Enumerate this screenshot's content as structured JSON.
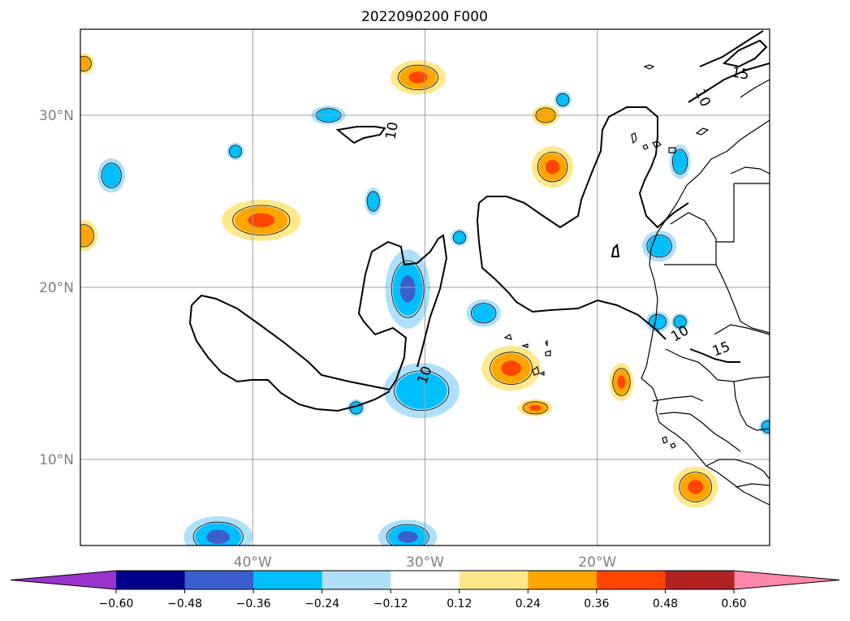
{
  "title": "2022090200 F000",
  "map": {
    "projection": "PlateCarree",
    "lon_range": [
      -50,
      -10
    ],
    "lat_range": [
      5,
      35
    ],
    "grid": true,
    "lat_ticks": [
      {
        "value": 30,
        "label": "30°N"
      },
      {
        "value": 20,
        "label": "20°N"
      },
      {
        "value": 10,
        "label": "10°N"
      }
    ],
    "lon_ticks": [
      {
        "value": -40,
        "label": "40°W"
      },
      {
        "value": -30,
        "label": "30°W"
      },
      {
        "value": -20,
        "label": "20°W"
      }
    ],
    "contour_labels": [
      {
        "text": "15",
        "lon": -11.7,
        "lat": 32.4,
        "rot": 10
      },
      {
        "text": "10",
        "lon": -13.9,
        "lat": 31.0,
        "rot": 65
      },
      {
        "text": "10",
        "lon": -31.9,
        "lat": 29.1,
        "rot": -80
      },
      {
        "text": "10",
        "lon": -30.0,
        "lat": 14.9,
        "rot": -70
      },
      {
        "text": "10",
        "lon": -15.2,
        "lat": 17.3,
        "rot": -30
      },
      {
        "text": "15",
        "lon": -12.8,
        "lat": 16.4,
        "rot": -20
      }
    ]
  },
  "colorbar": {
    "levels": [
      -0.6,
      -0.48,
      -0.36,
      -0.24,
      -0.12,
      0.12,
      0.24,
      0.36,
      0.48,
      0.6
    ],
    "tick_labels": [
      "−0.60",
      "−0.48",
      "−0.36",
      "−0.24",
      "−0.12",
      "0.12",
      "0.24",
      "0.36",
      "0.48",
      "0.60"
    ],
    "extend": "both",
    "under_color": "#9933cc",
    "over_color": "#ff88aa",
    "colors": [
      "#00008b",
      "#3a5fcd",
      "#00bfff",
      "#aee0fa",
      "#ffffff",
      "#ffe88c",
      "#ffa500",
      "#ff4500",
      "#b22222"
    ]
  },
  "chart_data": {
    "type": "heatmap",
    "title": "2022090200 F000",
    "x_range": [
      -50,
      -10
    ],
    "y_range": [
      5,
      35
    ],
    "blobs": [
      {
        "lon": -49.8,
        "lat": 33.0,
        "rx": 0.6,
        "ry": 0.6,
        "levels": [
          "#ffe88c",
          "#ffa500"
        ]
      },
      {
        "lon": -49.8,
        "lat": 23.0,
        "rx": 0.8,
        "ry": 0.9,
        "levels": [
          "#ffe88c",
          "#ffa500"
        ]
      },
      {
        "lon": -30.4,
        "lat": 32.2,
        "rx": 1.6,
        "ry": 1.0,
        "levels": [
          "#ffe88c",
          "#ffa500",
          "#ff4500"
        ]
      },
      {
        "lon": -23.0,
        "lat": 30.0,
        "rx": 0.8,
        "ry": 0.6,
        "levels": [
          "#ffe88c",
          "#ffa500"
        ]
      },
      {
        "lon": -22.6,
        "lat": 27.0,
        "rx": 1.2,
        "ry": 1.2,
        "levels": [
          "#ffe88c",
          "#ffa500",
          "#ff4500"
        ]
      },
      {
        "lon": -39.5,
        "lat": 23.9,
        "rx": 2.3,
        "ry": 1.2,
        "levels": [
          "#ffe88c",
          "#ffa500",
          "#ff4500"
        ]
      },
      {
        "lon": -25.0,
        "lat": 15.3,
        "rx": 1.7,
        "ry": 1.3,
        "levels": [
          "#ffe88c",
          "#ffa500",
          "#ff4500"
        ]
      },
      {
        "lon": -23.6,
        "lat": 13.0,
        "rx": 1.0,
        "ry": 0.5,
        "levels": [
          "#ffe88c",
          "#ffa500",
          "#ff4500"
        ]
      },
      {
        "lon": -18.6,
        "lat": 14.5,
        "rx": 0.7,
        "ry": 1.1,
        "levels": [
          "#ffe88c",
          "#ffa500",
          "#ff4500"
        ]
      },
      {
        "lon": -14.3,
        "lat": 8.4,
        "rx": 1.3,
        "ry": 1.2,
        "levels": [
          "#ffe88c",
          "#ffa500",
          "#ff4500"
        ]
      },
      {
        "lon": -35.6,
        "lat": 30.0,
        "rx": 1.0,
        "ry": 0.55,
        "levels": [
          "#aee0fa",
          "#00bfff"
        ]
      },
      {
        "lon": -48.2,
        "lat": 26.5,
        "rx": 0.8,
        "ry": 1.0,
        "levels": [
          "#aee0fa",
          "#00bfff"
        ]
      },
      {
        "lon": -41.0,
        "lat": 27.9,
        "rx": 0.5,
        "ry": 0.5,
        "levels": [
          "#aee0fa",
          "#00bfff"
        ]
      },
      {
        "lon": -33.0,
        "lat": 25.0,
        "rx": 0.5,
        "ry": 0.8,
        "levels": [
          "#aee0fa",
          "#00bfff"
        ]
      },
      {
        "lon": -28.0,
        "lat": 22.9,
        "rx": 0.5,
        "ry": 0.5,
        "levels": [
          "#aee0fa",
          "#00bfff"
        ]
      },
      {
        "lon": -31.0,
        "lat": 19.9,
        "rx": 1.3,
        "ry": 2.3,
        "levels": [
          "#aee0fa",
          "#00bfff",
          "#3a5fcd"
        ]
      },
      {
        "lon": -22.0,
        "lat": 30.9,
        "rx": 0.5,
        "ry": 0.5,
        "levels": [
          "#aee0fa",
          "#00bfff"
        ]
      },
      {
        "lon": -26.6,
        "lat": 18.5,
        "rx": 1.0,
        "ry": 0.8,
        "levels": [
          "#aee0fa",
          "#00bfff"
        ]
      },
      {
        "lon": -34.0,
        "lat": 13.0,
        "rx": 0.5,
        "ry": 0.5,
        "levels": [
          "#aee0fa",
          "#00bfff"
        ]
      },
      {
        "lon": -30.2,
        "lat": 14.0,
        "rx": 2.2,
        "ry": 1.6,
        "levels": [
          "#aee0fa",
          "#00bfff"
        ]
      },
      {
        "lon": -15.2,
        "lat": 27.3,
        "rx": 0.6,
        "ry": 1.0,
        "levels": [
          "#aee0fa",
          "#00bfff"
        ]
      },
      {
        "lon": -16.4,
        "lat": 22.4,
        "rx": 1.0,
        "ry": 0.9,
        "levels": [
          "#aee0fa",
          "#00bfff"
        ]
      },
      {
        "lon": -16.5,
        "lat": 18.0,
        "rx": 0.7,
        "ry": 0.6,
        "levels": [
          "#aee0fa",
          "#00bfff"
        ]
      },
      {
        "lon": -15.2,
        "lat": 18.0,
        "rx": 0.5,
        "ry": 0.5,
        "levels": [
          "#aee0fa",
          "#00bfff"
        ]
      },
      {
        "lon": -10.1,
        "lat": 11.9,
        "rx": 0.5,
        "ry": 0.5,
        "levels": [
          "#aee0fa",
          "#00bfff"
        ]
      },
      {
        "lon": -42.0,
        "lat": 5.5,
        "rx": 2.0,
        "ry": 1.2,
        "levels": [
          "#aee0fa",
          "#00bfff",
          "#3a5fcd"
        ]
      },
      {
        "lon": -31.0,
        "lat": 5.5,
        "rx": 1.7,
        "ry": 1.0,
        "levels": [
          "#aee0fa",
          "#00bfff",
          "#3a5fcd"
        ]
      }
    ]
  }
}
